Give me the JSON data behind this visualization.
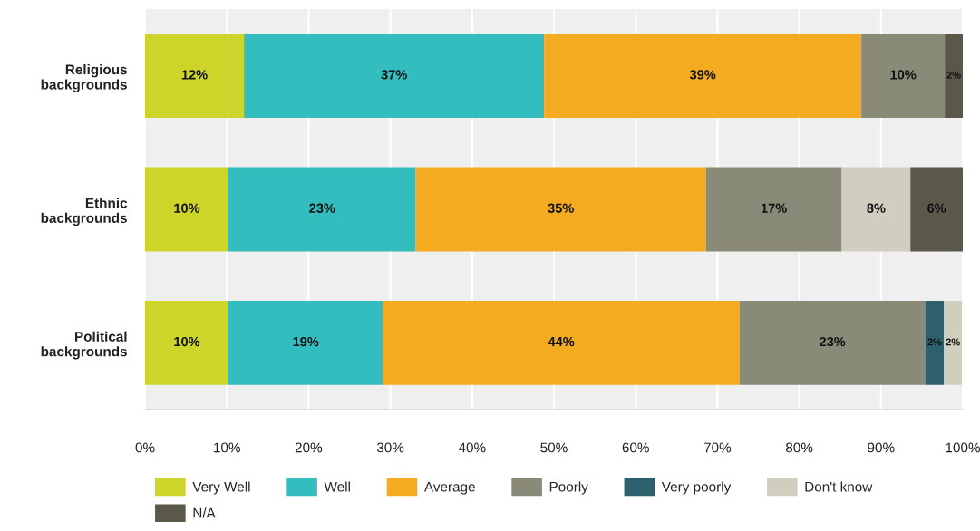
{
  "chart_data": {
    "type": "bar",
    "orientation": "horizontal",
    "stacked": true,
    "categories": [
      "Religious\nbackgrounds",
      "Ethnic\nbackgrounds",
      "Political\nbackgrounds"
    ],
    "series": [
      {
        "name": "Very Well",
        "color": "#cdd52a",
        "values": [
          12.1,
          10.2,
          10.2
        ],
        "value_labels": [
          "12%",
          "10%",
          "10%"
        ]
      },
      {
        "name": "Well",
        "color": "#33bdbf",
        "values": [
          36.7,
          22.9,
          18.9
        ],
        "value_labels": [
          "37%",
          "23%",
          "19%"
        ]
      },
      {
        "name": "Average",
        "color": "#f5ab1f",
        "values": [
          38.8,
          35.5,
          43.6
        ],
        "value_labels": [
          "39%",
          "35%",
          "44%"
        ]
      },
      {
        "name": "Poorly",
        "color": "#898a78",
        "values": [
          10.2,
          16.6,
          22.7
        ],
        "value_labels": [
          "10%",
          "17%",
          "23%"
        ]
      },
      {
        "name": "Very poorly",
        "color": "#2d5f6c",
        "values": [
          0,
          0,
          2.3
        ],
        "value_labels": [
          null,
          null,
          "2%"
        ]
      },
      {
        "name": "Don't know",
        "color": "#d0cfbf",
        "values": [
          0,
          8.4,
          2.2
        ],
        "value_labels": [
          null,
          "8%",
          "2%"
        ]
      },
      {
        "name": "N/A",
        "color": "#5a5848",
        "values": [
          2.2,
          6.4,
          0
        ],
        "value_labels": [
          "2%",
          "6%",
          null
        ]
      }
    ],
    "xlim": [
      0,
      100
    ],
    "xticks": [
      {
        "value": 0,
        "label": "0%"
      },
      {
        "value": 10,
        "label": "10%"
      },
      {
        "value": 20,
        "label": "20%"
      },
      {
        "value": 30,
        "label": "30%"
      },
      {
        "value": 40,
        "label": "40%"
      },
      {
        "value": 50,
        "label": "50%"
      },
      {
        "value": 60,
        "label": "60%"
      },
      {
        "value": 70,
        "label": "70%"
      },
      {
        "value": 80,
        "label": "80%"
      },
      {
        "value": 90,
        "label": "90%"
      },
      {
        "value": 100,
        "label": "100%"
      }
    ],
    "grid": "x",
    "legend": "bottom"
  }
}
